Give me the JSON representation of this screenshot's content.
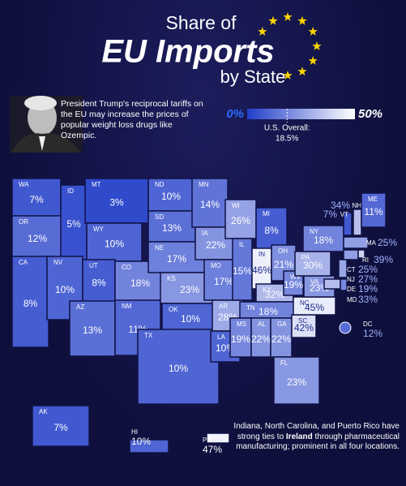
{
  "header": {
    "title_lines": [
      "Share of",
      "EU Imports",
      "by State"
    ]
  },
  "caption": "President Trump's reciprocal tariffs on the EU may increase the prices of popular weight loss drugs like Ozempic.",
  "legend": {
    "min": {
      "value": 0,
      "label": "0%"
    },
    "max": {
      "value": 50,
      "label": "50%"
    },
    "overall": {
      "label": "U.S. Overall:",
      "value": 18.5,
      "value_label": "18.5%"
    }
  },
  "chart_data": {
    "type": "choropleth",
    "categories": [
      "WA",
      "OR",
      "CA",
      "ID",
      "NV",
      "MT",
      "WY",
      "UT",
      "AZ",
      "CO",
      "NM",
      "ND",
      "SD",
      "NE",
      "KS",
      "OK",
      "TX",
      "MN",
      "IA",
      "MO",
      "AR",
      "LA",
      "WI",
      "IL",
      "MI",
      "IN",
      "OH",
      "KY",
      "TN",
      "MS",
      "AL",
      "GA",
      "FL",
      "SC",
      "NC",
      "VA",
      "WV",
      "PA",
      "NY",
      "MD",
      "DE",
      "NJ",
      "CT",
      "RI",
      "MA",
      "VT",
      "NH",
      "ME",
      "DC",
      "AK",
      "HI",
      "PR"
    ],
    "values": [
      7,
      12,
      8,
      5,
      10,
      3,
      10,
      8,
      13,
      18,
      11,
      10,
      13,
      17,
      23,
      10,
      10,
      14,
      22,
      17,
      28,
      10,
      26,
      15,
      8,
      46,
      21,
      32,
      18,
      19,
      22,
      22,
      23,
      42,
      45,
      23,
      19,
      30,
      18,
      33,
      19,
      27,
      25,
      39,
      25,
      7,
      34,
      11,
      12,
      7,
      10,
      47
    ],
    "value_labels": [
      "7%",
      "12%",
      "8%",
      "5%",
      "10%",
      "3%",
      "10%",
      "8%",
      "13%",
      "18%",
      "11%",
      "10%",
      "13%",
      "17%",
      "23%",
      "10%",
      "10%",
      "14%",
      "22%",
      "17%",
      "28%",
      "10%",
      "26%",
      "15%",
      "8%",
      "46%",
      "21%",
      "32%",
      "18%",
      "19%",
      "22%",
      "22%",
      "23%",
      "42%",
      "45%",
      "23%",
      "19%",
      "30%",
      "18%",
      "33%",
      "19%",
      "27%",
      "25%",
      "39%",
      "25%",
      "7%",
      "34%",
      "11%",
      "12%",
      "7%",
      "10%",
      "47%"
    ]
  },
  "footnote": [
    "Indiana, North Carolina, and Puerto Rico have strong ties to ",
    "Ireland",
    " through pharmaceutical manufacturing; prominent in all four locations."
  ]
}
